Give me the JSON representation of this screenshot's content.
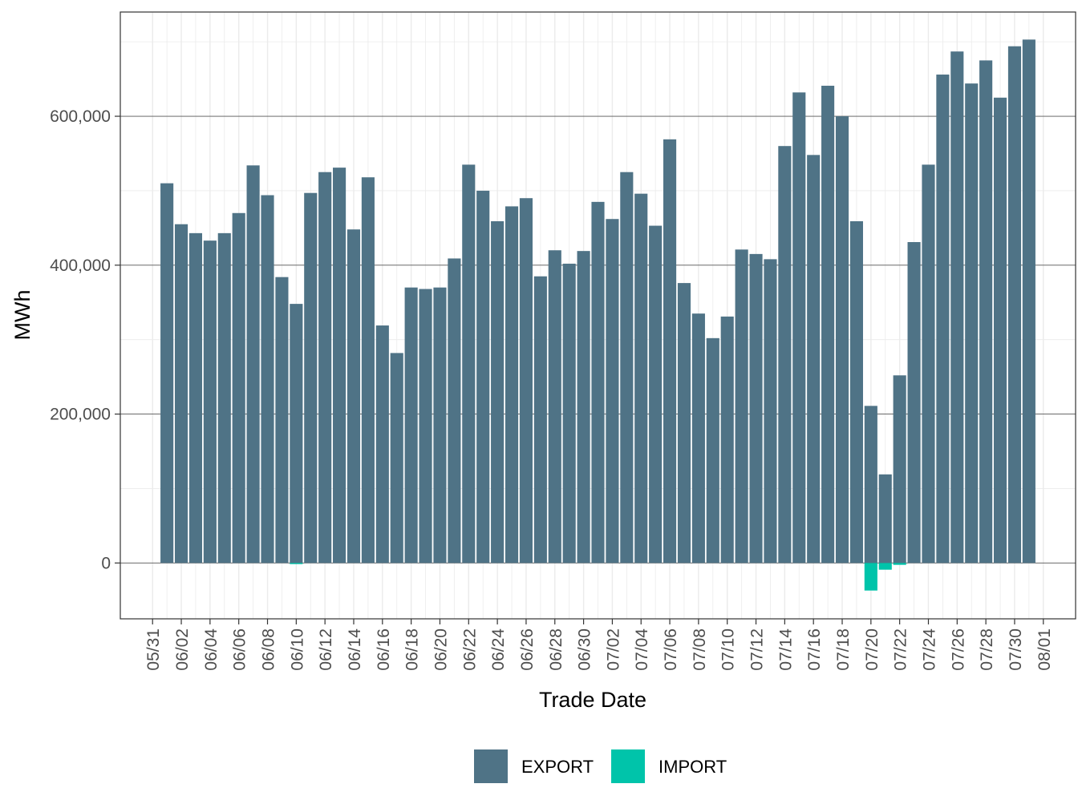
{
  "chart_data": {
    "type": "bar",
    "stacked": true,
    "xlabel": "Trade Date",
    "ylabel": "MWh",
    "ylim": [
      -75000,
      740000
    ],
    "y_ticks": [
      0,
      200000,
      400000,
      600000
    ],
    "y_tick_labels": [
      "0",
      "200,000",
      "400,000",
      "600,000"
    ],
    "x_ticks": [
      "2022-05-31",
      "2022-06-02",
      "2022-06-04",
      "2022-06-06",
      "2022-06-08",
      "2022-06-10",
      "2022-06-12",
      "2022-06-14",
      "2022-06-16",
      "2022-06-18",
      "2022-06-20",
      "2022-06-22",
      "2022-06-24",
      "2022-06-26",
      "2022-06-28",
      "2022-06-30",
      "2022-07-02",
      "2022-07-04",
      "2022-07-06",
      "2022-07-08",
      "2022-07-10",
      "2022-07-12",
      "2022-07-14",
      "2022-07-16",
      "2022-07-18",
      "2022-07-20",
      "2022-07-22",
      "2022-07-24",
      "2022-07-26",
      "2022-07-28",
      "2022-07-30",
      "2022-08-01"
    ],
    "x_tick_labels": [
      "05/31",
      "06/02",
      "06/04",
      "06/06",
      "06/08",
      "06/10",
      "06/12",
      "06/14",
      "06/16",
      "06/18",
      "06/20",
      "06/22",
      "06/24",
      "06/26",
      "06/28",
      "06/30",
      "07/02",
      "07/04",
      "07/06",
      "07/08",
      "07/10",
      "07/12",
      "07/14",
      "07/16",
      "07/18",
      "07/20",
      "07/22",
      "07/24",
      "07/26",
      "07/28",
      "07/30",
      "08/01"
    ],
    "grid": true,
    "legend_position": "bottom",
    "x": [
      "2022-06-01",
      "2022-06-02",
      "2022-06-03",
      "2022-06-04",
      "2022-06-05",
      "2022-06-06",
      "2022-06-07",
      "2022-06-08",
      "2022-06-09",
      "2022-06-10",
      "2022-06-11",
      "2022-06-12",
      "2022-06-13",
      "2022-06-14",
      "2022-06-15",
      "2022-06-16",
      "2022-06-17",
      "2022-06-18",
      "2022-06-19",
      "2022-06-20",
      "2022-06-21",
      "2022-06-22",
      "2022-06-23",
      "2022-06-24",
      "2022-06-25",
      "2022-06-26",
      "2022-06-27",
      "2022-06-28",
      "2022-06-29",
      "2022-06-30",
      "2022-07-01",
      "2022-07-02",
      "2022-07-03",
      "2022-07-04",
      "2022-07-05",
      "2022-07-06",
      "2022-07-07",
      "2022-07-08",
      "2022-07-09",
      "2022-07-10",
      "2022-07-11",
      "2022-07-12",
      "2022-07-13",
      "2022-07-14",
      "2022-07-15",
      "2022-07-16",
      "2022-07-17",
      "2022-07-18",
      "2022-07-19",
      "2022-07-20",
      "2022-07-21",
      "2022-07-22",
      "2022-07-23",
      "2022-07-24",
      "2022-07-25",
      "2022-07-26",
      "2022-07-27",
      "2022-07-28",
      "2022-07-29",
      "2022-07-30",
      "2022-07-31"
    ],
    "series": [
      {
        "name": "EXPORT",
        "color": "#4f7386",
        "values": [
          510000,
          455000,
          443000,
          433000,
          443000,
          470000,
          534000,
          494000,
          384000,
          348000,
          497000,
          525000,
          531000,
          448000,
          518000,
          319000,
          282000,
          370000,
          368000,
          370000,
          409000,
          535000,
          500000,
          459000,
          479000,
          490000,
          385000,
          420000,
          402000,
          419000,
          485000,
          462000,
          525000,
          496000,
          453000,
          569000,
          376000,
          335000,
          302000,
          331000,
          421000,
          415000,
          408000,
          560000,
          632000,
          548000,
          641000,
          600000,
          459000,
          211000,
          119000,
          252000,
          431000,
          535000,
          656000,
          687000,
          644000,
          675000,
          625000,
          694000,
          703000
        ]
      },
      {
        "name": "IMPORT",
        "color": "#00c4aa",
        "values": [
          0,
          0,
          0,
          0,
          0,
          0,
          0,
          0,
          0,
          -1500,
          0,
          0,
          0,
          0,
          0,
          0,
          0,
          0,
          0,
          0,
          0,
          0,
          0,
          0,
          0,
          0,
          0,
          0,
          0,
          0,
          0,
          0,
          0,
          0,
          0,
          0,
          0,
          0,
          0,
          0,
          0,
          0,
          0,
          0,
          0,
          0,
          0,
          0,
          0,
          -37000,
          -9000,
          -2500,
          0,
          0,
          0,
          0,
          0,
          0,
          0,
          0,
          0
        ]
      }
    ]
  }
}
